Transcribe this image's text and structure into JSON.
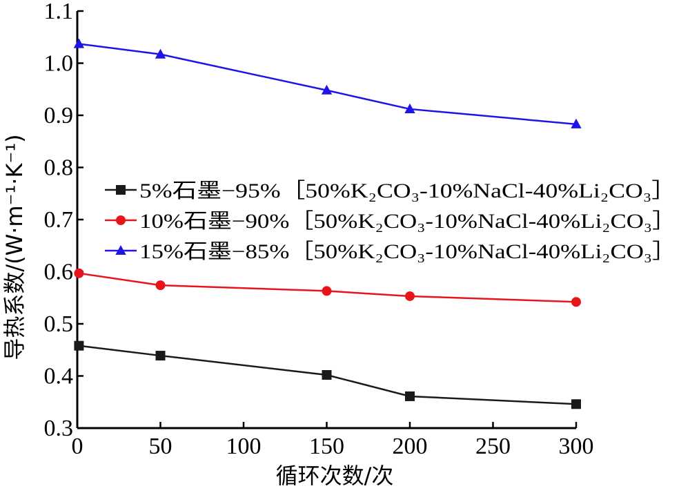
{
  "chart_data": {
    "type": "line",
    "title": "",
    "xlabel": "循环次数/次",
    "ylabel": "导热系数/(W·m⁻¹·K⁻¹)",
    "xlim": [
      0,
      300
    ],
    "ylim": [
      0.3,
      1.1
    ],
    "xticks": [
      0,
      50,
      100,
      150,
      200,
      250,
      300
    ],
    "xtick_labels": [
      "0",
      "50",
      "100",
      "150",
      "200",
      "250",
      "300"
    ],
    "yticks": [
      0.3,
      0.4,
      0.5,
      0.6,
      0.7,
      0.8,
      0.9,
      1.0,
      1.1
    ],
    "ytick_labels": [
      "0.3",
      "0.4",
      "0.5",
      "0.6",
      "0.7",
      "0.8",
      "0.9",
      "1.0",
      "1.1"
    ],
    "grid": false,
    "legend_position": "middle-left",
    "x": [
      1,
      50,
      150,
      200,
      300
    ],
    "series": [
      {
        "name": "5%石墨−95%［50%K₂CO₃-10%NaCl-40%Li₂CO₃］",
        "values": [
          0.458,
          0.439,
          0.402,
          0.361,
          0.346
        ],
        "color": "#1a1a1a",
        "marker": "square"
      },
      {
        "name": "10%石墨−90%［50%K₂CO₃-10%NaCl-40%Li₂CO₃］",
        "values": [
          0.597,
          0.574,
          0.563,
          0.553,
          0.542
        ],
        "color": "#e8141c",
        "marker": "circle"
      },
      {
        "name": "15%石墨−85%［50%K₂CO₃-10%NaCl-40%Li₂CO₃］",
        "values": [
          1.037,
          1.017,
          0.948,
          0.912,
          0.883
        ],
        "color": "#1e14e6",
        "marker": "triangle"
      }
    ]
  }
}
